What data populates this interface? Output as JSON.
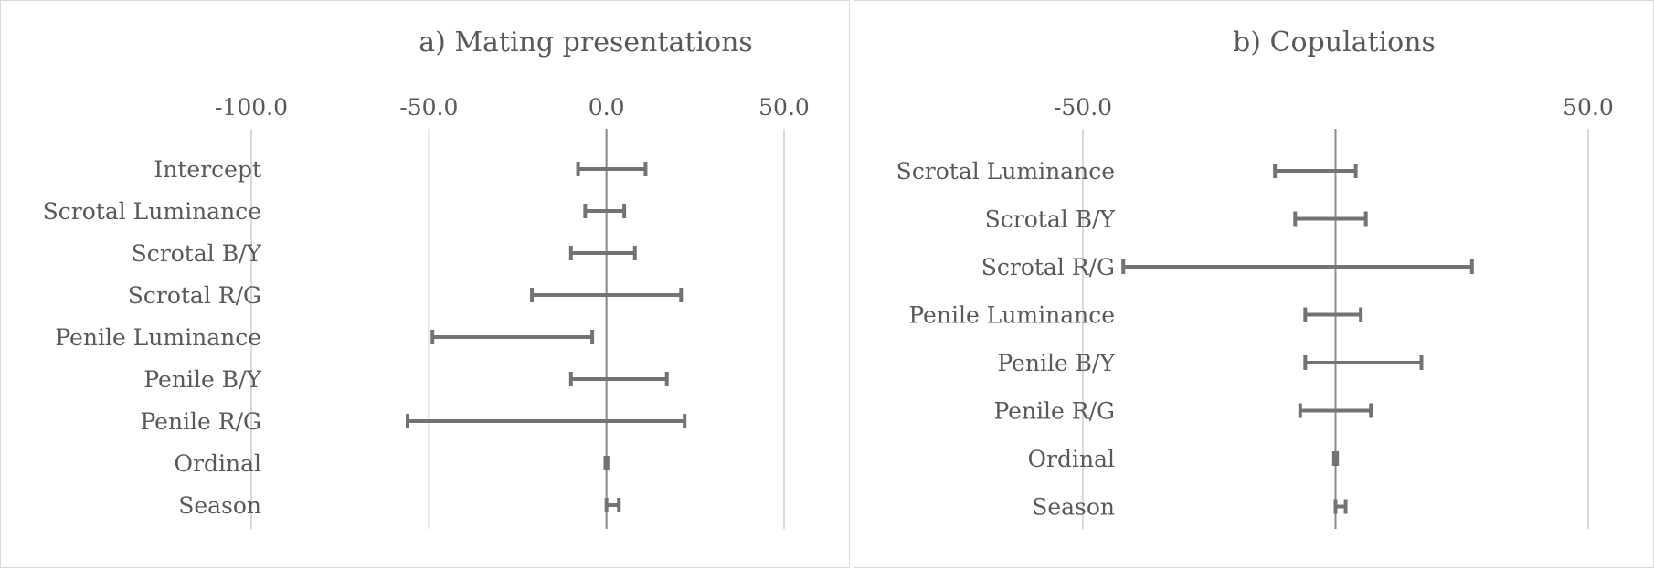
{
  "chart_data": [
    {
      "type": "forest",
      "title": "a) Mating presentations",
      "xlim": [
        -100,
        50
      ],
      "xticks": [
        -100,
        -50,
        0,
        50
      ],
      "xtick_labels": [
        "-100.0",
        "-50.0",
        "0.0",
        "50.0"
      ],
      "grid": true,
      "categories": [
        "Intercept",
        "Scrotal Luminance",
        "Scrotal B/Y",
        "Scrotal R/G",
        "Penile Luminance",
        "Penile B/Y",
        "Penile R/G",
        "Ordinal",
        "Season"
      ],
      "lower": [
        -8,
        -6,
        -10,
        -21,
        -49,
        -10,
        -56,
        -0.3,
        0
      ],
      "upper": [
        11,
        5,
        8,
        21,
        -4,
        17,
        22,
        0.3,
        3.5
      ]
    },
    {
      "type": "forest",
      "title": "b) Copulations",
      "xlim": [
        -50,
        50
      ],
      "xticks": [
        -50,
        50
      ],
      "xtick_labels": [
        "-50.0",
        "50.0"
      ],
      "grid": true,
      "categories": [
        "Scrotal Luminance",
        "Scrotal B/Y",
        "Scrotal R/G",
        "Penile Luminance",
        "Penile B/Y",
        "Penile R/G",
        "Ordinal",
        "Season"
      ],
      "lower": [
        -12,
        -8,
        -42,
        -6,
        -6,
        -7,
        -0.3,
        0
      ],
      "upper": [
        4,
        6,
        27,
        5,
        17,
        7,
        0.3,
        2
      ]
    }
  ]
}
